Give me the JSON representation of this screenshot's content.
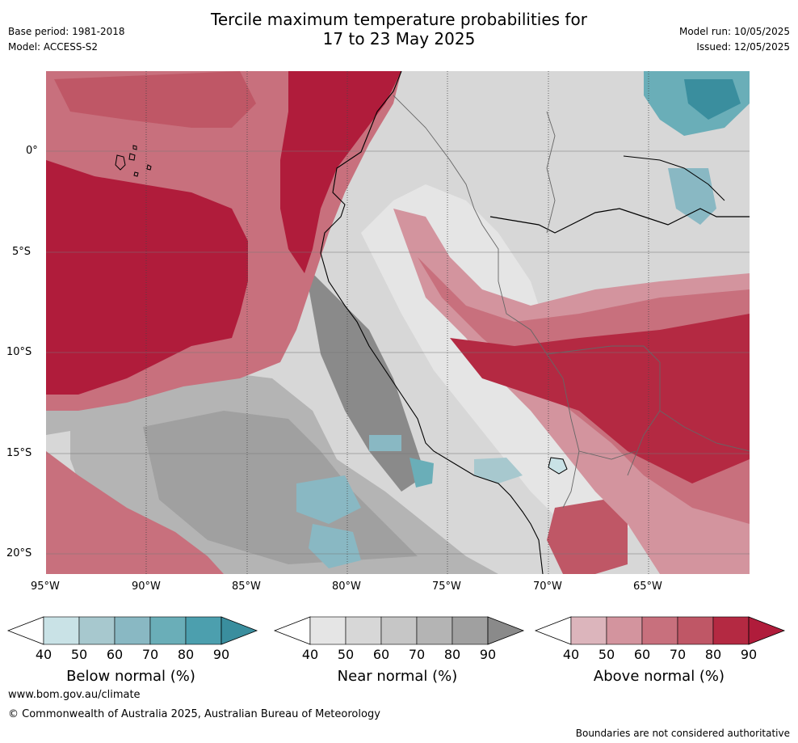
{
  "header": {
    "base_period": "Base period: 1981-2018",
    "model": "Model: ACCESS-S2",
    "title_line1": "Tercile maximum temperature probabilities for",
    "title_line2": "17 to 23 May 2025",
    "model_run": "Model run: 10/05/2025",
    "issued": "Issued: 12/05/2025"
  },
  "map": {
    "lon_labels": [
      "95°W",
      "90°W",
      "85°W",
      "80°W",
      "75°W",
      "70°W",
      "65°W"
    ],
    "lat_labels": [
      "0°",
      "5°S",
      "10°S",
      "15°S",
      "20°S"
    ],
    "colors": {
      "above": [
        "#dcb5bc",
        "#d3949e",
        "#c8707d",
        "#bf5766",
        "#b42942",
        "#b01c3b"
      ],
      "near": [
        "#e5e5e5",
        "#d7d7d7",
        "#c6c6c6",
        "#b4b4b4",
        "#a0a0a0",
        "#8a8a8a"
      ],
      "below": [
        "#c9e2e6",
        "#a7c8ce",
        "#89b8c3",
        "#6aaeb8",
        "#4c9fae",
        "#3a8e9e"
      ]
    }
  },
  "legends": [
    {
      "title": "Below normal (%)",
      "ticks": [
        "40",
        "50",
        "60",
        "70",
        "80",
        "90"
      ],
      "colors": [
        "#c9e2e6",
        "#a7c8ce",
        "#89b8c3",
        "#6aaeb8",
        "#4c9fae",
        "#3a8e9e"
      ]
    },
    {
      "title": "Near normal (%)",
      "ticks": [
        "40",
        "50",
        "60",
        "70",
        "80",
        "90"
      ],
      "colors": [
        "#e5e5e5",
        "#d7d7d7",
        "#c6c6c6",
        "#b4b4b4",
        "#a0a0a0",
        "#8a8a8a"
      ]
    },
    {
      "title": "Above normal (%)",
      "ticks": [
        "40",
        "50",
        "60",
        "70",
        "80",
        "90"
      ],
      "colors": [
        "#dcb5bc",
        "#d3949e",
        "#c8707d",
        "#bf5766",
        "#b42942",
        "#b01c3b"
      ]
    }
  ],
  "footer": {
    "website": "www.bom.gov.au/climate",
    "copyright": "© Commonwealth of Australia 2025, Australian Bureau of Meteorology",
    "disclaimer": "Boundaries are not considered authoritative"
  }
}
